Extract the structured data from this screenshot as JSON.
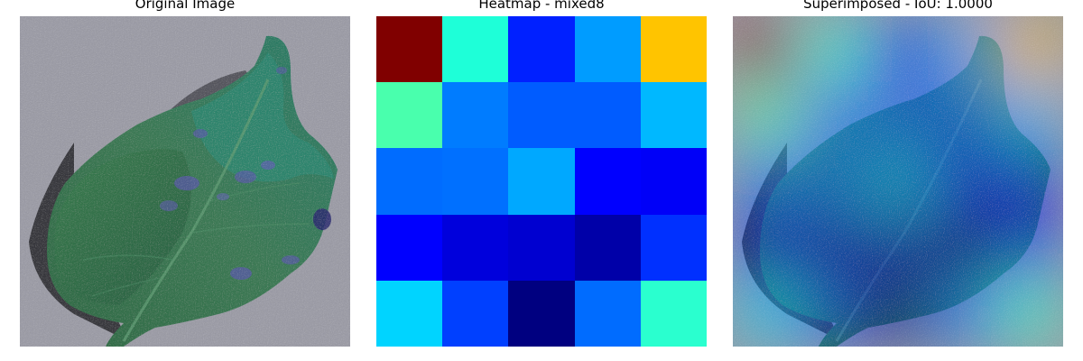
{
  "panels": [
    {
      "title": "Original Image"
    },
    {
      "title": "Heatmap - mixed8"
    },
    {
      "title": "Superimposed - IoU: 1.0000"
    }
  ],
  "heatmap": {
    "colormap": "jet",
    "rows": 5,
    "cols": 5,
    "cells": [
      [
        "#800000",
        "#1effd8",
        "#0020ff",
        "#009cff",
        "#ffc400"
      ],
      [
        "#49ffad",
        "#007cff",
        "#005cff",
        "#005cff",
        "#00b8ff"
      ],
      [
        "#006cff",
        "#0070ff",
        "#00a8ff",
        "#0000ff",
        "#0000f8"
      ],
      [
        "#0000ff",
        "#0000dc",
        "#0000d0",
        "#0000a8",
        "#0030ff"
      ],
      [
        "#00d4ff",
        "#0040ff",
        "#000080",
        "#006cff",
        "#2affcf"
      ]
    ]
  },
  "colors": {
    "background": "#ffffff",
    "pavement": "#9c9ca6",
    "leaf": "#3f7a4f",
    "lesion": "#5a5aa8"
  }
}
